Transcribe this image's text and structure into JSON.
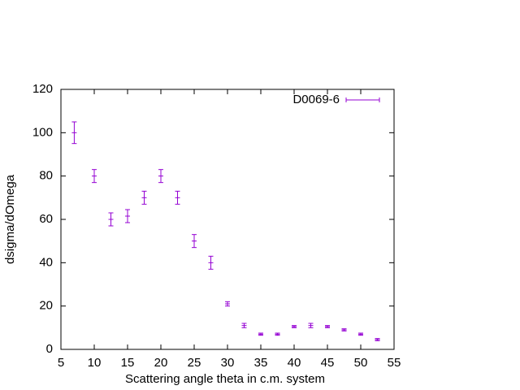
{
  "chart_data": {
    "type": "errorbar",
    "xlabel": "Scattering angle theta in c.m. system",
    "ylabel": "dsigma/dOmega",
    "xlim": [
      5,
      55
    ],
    "xticks": [
      5,
      10,
      15,
      20,
      25,
      30,
      35,
      40,
      45,
      50,
      55
    ],
    "ylim": [
      0,
      120
    ],
    "yticks": [
      0,
      20,
      40,
      60,
      80,
      100,
      120
    ],
    "legend": "top-right",
    "series": [
      {
        "name": "D0069-6",
        "color": "#9400d3",
        "x": [
          7,
          10,
          12.5,
          15,
          17.5,
          20,
          22.5,
          25,
          27.5,
          30,
          32.5,
          35,
          37.5,
          40,
          42.5,
          45,
          47.5,
          50,
          52.5
        ],
        "values": [
          100,
          80,
          60,
          61.5,
          70,
          80,
          70,
          50,
          40,
          21,
          11,
          7,
          7,
          10.5,
          11,
          10.5,
          9,
          7,
          4.5
        ],
        "errors": [
          5,
          3,
          3,
          3,
          3,
          3,
          3,
          3,
          3,
          1,
          1,
          0.5,
          0.5,
          0.5,
          1,
          0.5,
          0.5,
          0.5,
          0.5
        ]
      }
    ]
  }
}
